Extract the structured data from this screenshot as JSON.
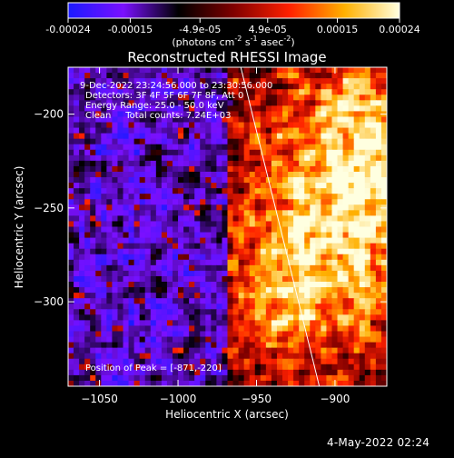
{
  "colorbar": {
    "tick_labels": [
      "-0.00024",
      "-0.00015",
      "-4.9e-05",
      "4.9e-05",
      "0.00015",
      "0.00024"
    ],
    "tick_values": [
      -0.00024,
      -0.00015,
      -4.9e-05,
      4.9e-05,
      0.00015,
      0.00024
    ],
    "range": [
      -0.00024,
      0.00024
    ],
    "units": "(photons cm",
    "units_exp1": "-2",
    "units_mid": " s",
    "units_exp2": "-1",
    "units_end": " asec",
    "units_exp3": "-2",
    "units_close": ")",
    "colormap": [
      "#1a1aff",
      "#7a10ff",
      "#000000",
      "#800000",
      "#ff2000",
      "#ffb000",
      "#ffffe0"
    ]
  },
  "chart_data": {
    "type": "heatmap",
    "title": "Reconstructed RHESSI Image",
    "xlabel": "Heliocentric X (arcsec)",
    "ylabel": "Heliocentric Y (arcsec)",
    "xlim": [
      -1070,
      -867
    ],
    "ylim": [
      -345,
      -175
    ],
    "xticks": [
      -1050,
      -1000,
      -950,
      -900
    ],
    "yticks": [
      -200,
      -250,
      -300
    ],
    "xtick_labels": [
      "−1050",
      "−1000",
      "−950",
      "−900"
    ],
    "ytick_labels": [
      "−200",
      "−250",
      "−300"
    ],
    "peak": [
      -871,
      -220
    ],
    "limb_line": [
      [
        -960,
        -175
      ],
      [
        -910,
        -345
      ]
    ],
    "annotations": [
      "9-Dec-2022 23:24:56.000 to 23:30:56.000",
      "Detectors: 3F 4F 5F 6F 7F 8F, Att 0",
      "Energy Range: 25.0 - 50.0 keV",
      "Clean     Total counts: 7.24E+03"
    ],
    "peak_label": "Position of Peak = [-871,-220]"
  },
  "timestamp": "4-May-2022 02:24"
}
